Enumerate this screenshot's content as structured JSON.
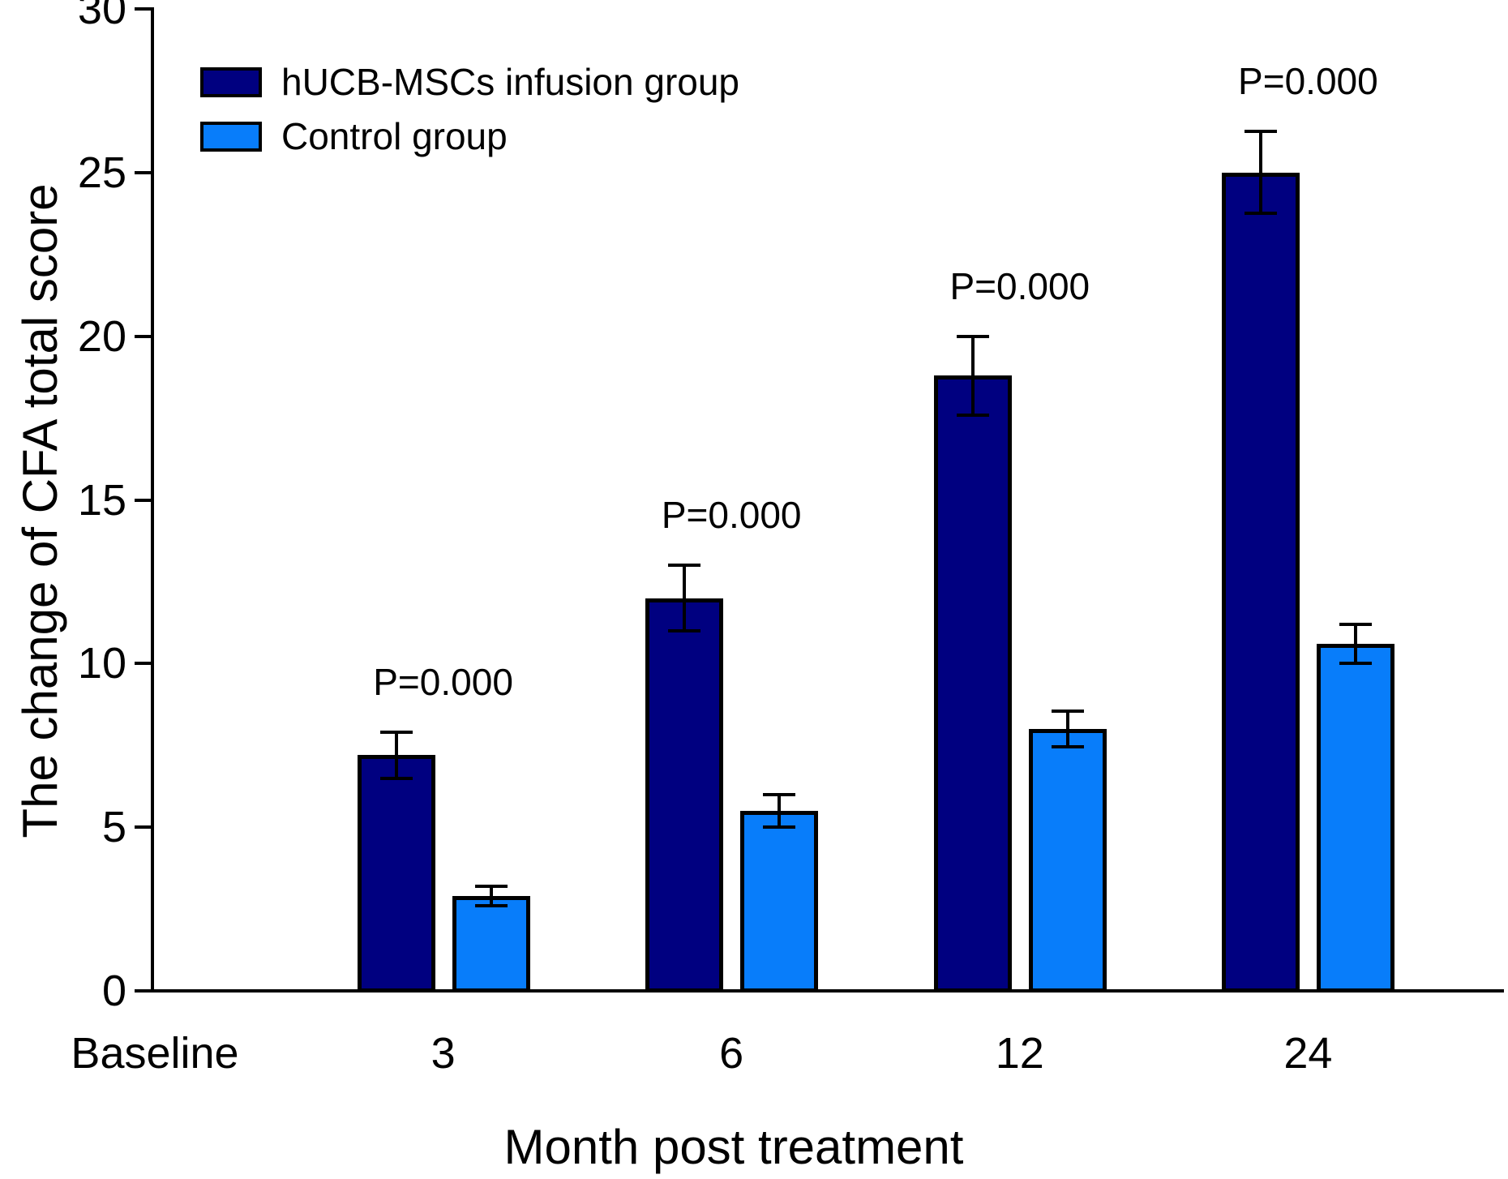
{
  "chart_data": {
    "type": "bar",
    "title": "",
    "xlabel": "Month post treatment",
    "ylabel": "The change of CFA total score",
    "categories": [
      "Baseline",
      "3",
      "6",
      "12",
      "24"
    ],
    "ylim": [
      0,
      30
    ],
    "yticks": [
      0,
      5,
      10,
      15,
      20,
      25,
      30
    ],
    "grid": false,
    "legend_position": "top-left-inside",
    "series": [
      {
        "name": "hUCB-MSCs infusion group",
        "color": "#000080",
        "values": [
          null,
          7.2,
          12.0,
          18.8,
          25.0
        ],
        "errors": [
          null,
          0.7,
          1.0,
          1.2,
          1.25
        ]
      },
      {
        "name": "Control group",
        "color": "#087DFA",
        "values": [
          null,
          2.9,
          5.5,
          8.0,
          10.6
        ],
        "errors": [
          null,
          0.3,
          0.5,
          0.55,
          0.6
        ]
      }
    ],
    "annotations": [
      {
        "category": "3",
        "text": "P=0.000"
      },
      {
        "category": "6",
        "text": "P=0.000"
      },
      {
        "category": "12",
        "text": "P=0.000"
      },
      {
        "category": "24",
        "text": "P=0.000"
      }
    ]
  }
}
